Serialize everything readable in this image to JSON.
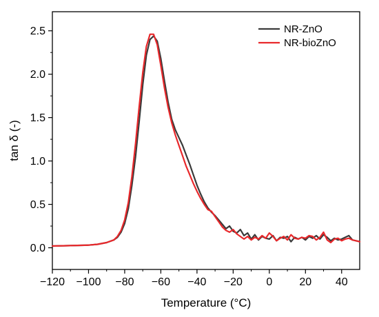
{
  "chart_data": {
    "type": "line",
    "title": "",
    "xlabel": "Temperature (°C)",
    "ylabel": "tan δ (-)",
    "xlim": [
      -120,
      50
    ],
    "ylim": [
      -0.25,
      2.72
    ],
    "xticks": [
      -120,
      -100,
      -80,
      -60,
      -40,
      -20,
      0,
      20,
      40
    ],
    "xtick_labels": [
      "−120",
      "−100",
      "−80",
      "−60",
      "−40",
      "−20",
      "0",
      "20",
      "40"
    ],
    "yticks": [
      0.0,
      0.5,
      1.0,
      1.5,
      2.0,
      2.5
    ],
    "ytick_labels": [
      "0.0",
      "0.5",
      "1.0",
      "1.5",
      "2.0",
      "2.5"
    ],
    "grid": false,
    "legend_position": "top-right",
    "series": [
      {
        "name": "NR-ZnO",
        "color": "#3a3a3a",
        "x": [
          -120,
          -110,
          -100,
          -95,
          -90,
          -86,
          -84,
          -82,
          -80,
          -78,
          -76,
          -74,
          -72,
          -70,
          -68,
          -66,
          -64,
          -62,
          -60,
          -58,
          -56,
          -54,
          -52,
          -50,
          -48,
          -46,
          -44,
          -42,
          -40,
          -38,
          -36,
          -34,
          -32,
          -30,
          -28,
          -26,
          -24,
          -22,
          -20,
          -18,
          -16,
          -14,
          -12,
          -10,
          -8,
          -6,
          -4,
          -2,
          0,
          2,
          4,
          6,
          8,
          10,
          12,
          14,
          16,
          18,
          20,
          22,
          24,
          26,
          28,
          30,
          32,
          34,
          36,
          38,
          40,
          42,
          44,
          46,
          48,
          50
        ],
        "y": [
          0.02,
          0.025,
          0.03,
          0.04,
          0.06,
          0.09,
          0.12,
          0.18,
          0.28,
          0.45,
          0.72,
          1.05,
          1.45,
          1.88,
          2.22,
          2.4,
          2.44,
          2.38,
          2.18,
          1.92,
          1.68,
          1.48,
          1.36,
          1.27,
          1.18,
          1.07,
          0.96,
          0.84,
          0.72,
          0.62,
          0.53,
          0.46,
          0.41,
          0.37,
          0.32,
          0.27,
          0.22,
          0.25,
          0.19,
          0.17,
          0.21,
          0.14,
          0.17,
          0.1,
          0.15,
          0.09,
          0.13,
          0.11,
          0.1,
          0.14,
          0.08,
          0.12,
          0.11,
          0.13,
          0.07,
          0.12,
          0.1,
          0.12,
          0.09,
          0.13,
          0.11,
          0.14,
          0.1,
          0.15,
          0.12,
          0.08,
          0.11,
          0.09,
          0.1,
          0.12,
          0.14,
          0.09,
          0.08,
          0.07
        ]
      },
      {
        "name": "NR-bioZnO",
        "color": "#e8282b",
        "x": [
          -120,
          -110,
          -100,
          -95,
          -90,
          -86,
          -84,
          -82,
          -80,
          -78,
          -76,
          -74,
          -72,
          -70,
          -68,
          -66,
          -64,
          -62,
          -60,
          -58,
          -56,
          -54,
          -52,
          -50,
          -48,
          -46,
          -44,
          -42,
          -40,
          -38,
          -36,
          -34,
          -32,
          -30,
          -28,
          -26,
          -24,
          -22,
          -20,
          -18,
          -16,
          -14,
          -12,
          -10,
          -8,
          -6,
          -4,
          -2,
          0,
          2,
          4,
          6,
          8,
          10,
          12,
          14,
          16,
          18,
          20,
          22,
          24,
          26,
          28,
          30,
          32,
          34,
          36,
          38,
          40,
          42,
          44,
          46,
          48,
          50
        ],
        "y": [
          0.02,
          0.025,
          0.03,
          0.04,
          0.06,
          0.09,
          0.13,
          0.2,
          0.32,
          0.52,
          0.82,
          1.2,
          1.62,
          2.02,
          2.32,
          2.46,
          2.46,
          2.34,
          2.1,
          1.84,
          1.62,
          1.44,
          1.3,
          1.18,
          1.06,
          0.94,
          0.84,
          0.74,
          0.65,
          0.57,
          0.5,
          0.44,
          0.42,
          0.36,
          0.3,
          0.24,
          0.2,
          0.18,
          0.21,
          0.16,
          0.13,
          0.1,
          0.13,
          0.09,
          0.12,
          0.1,
          0.14,
          0.11,
          0.17,
          0.13,
          0.08,
          0.11,
          0.13,
          0.09,
          0.15,
          0.11,
          0.1,
          0.12,
          0.11,
          0.14,
          0.13,
          0.09,
          0.12,
          0.18,
          0.09,
          0.06,
          0.1,
          0.11,
          0.08,
          0.1,
          0.11,
          0.09,
          0.08,
          0.07
        ]
      }
    ]
  }
}
